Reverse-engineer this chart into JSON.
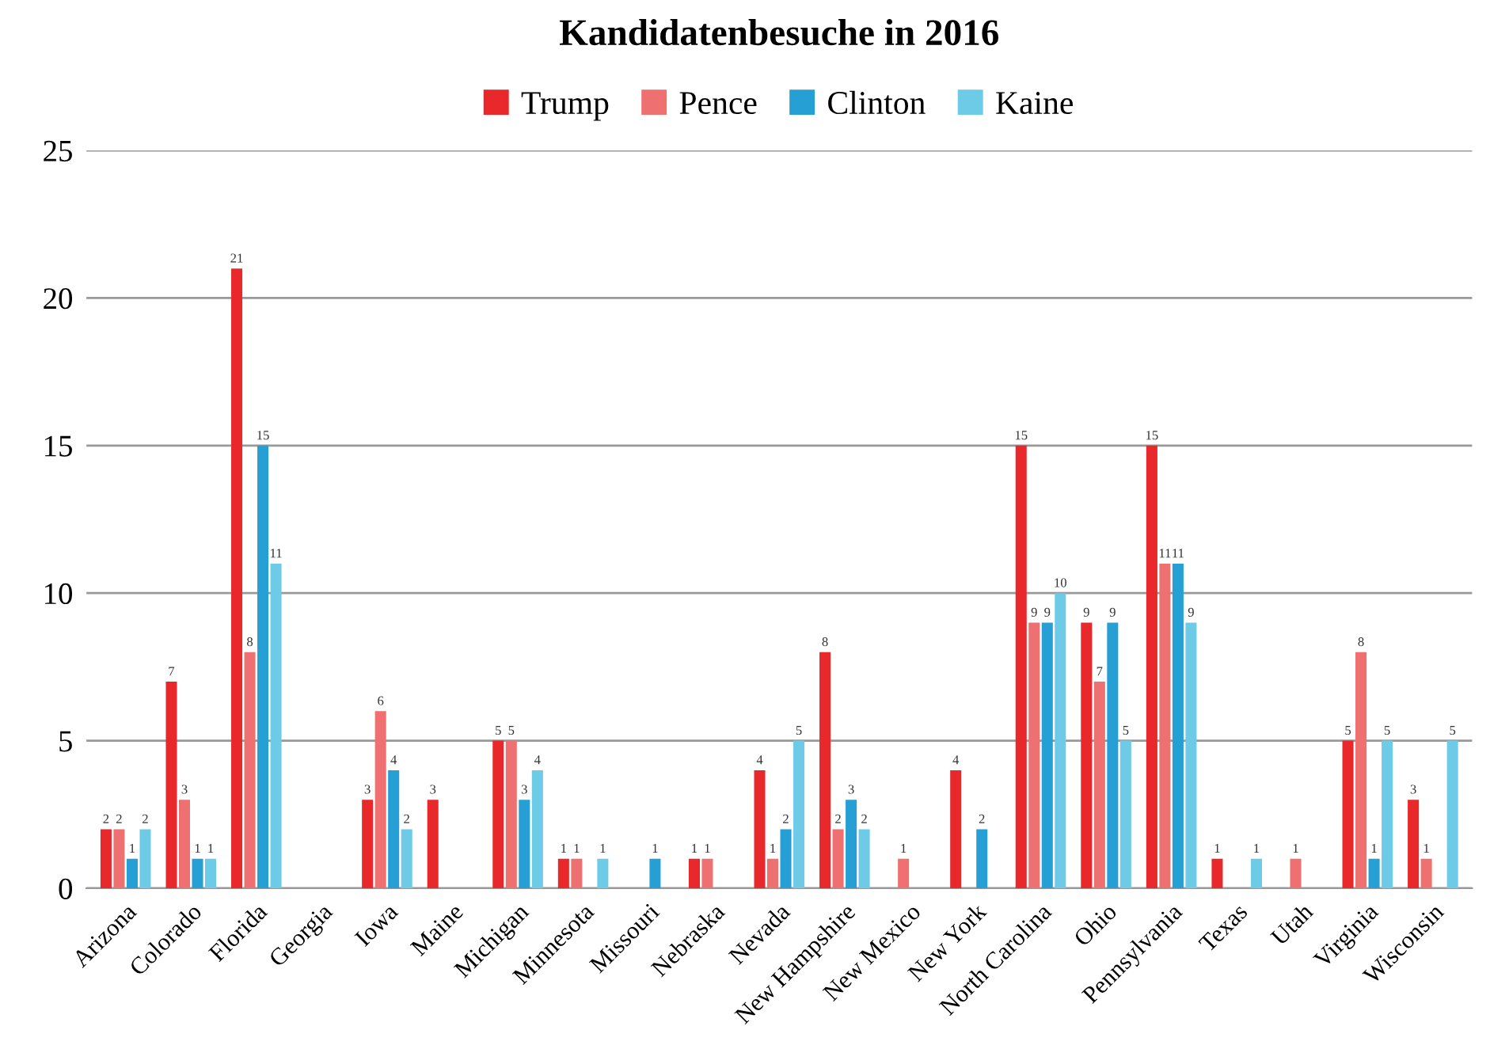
{
  "chart_data": {
    "type": "bar",
    "title": "Kandidatenbesuche in 2016",
    "categories": [
      "Arizona",
      "Colorado",
      "Florida",
      "Georgia",
      "Iowa",
      "Maine",
      "Michigan",
      "Minnesota",
      "Missouri",
      "Nebraska",
      "Nevada",
      "New Hampshire",
      "New Mexico",
      "New York",
      "North Carolina",
      "Ohio",
      "Pennsylvania",
      "Texas",
      "Utah",
      "Virginia",
      "Wisconsin"
    ],
    "series": [
      {
        "name": "Trump",
        "color": "#e8282b",
        "values": [
          2,
          7,
          21,
          null,
          3,
          3,
          5,
          1,
          null,
          1,
          4,
          8,
          null,
          4,
          15,
          9,
          15,
          1,
          null,
          5,
          3
        ]
      },
      {
        "name": "Pence",
        "color": "#ee7070",
        "values": [
          2,
          3,
          8,
          null,
          6,
          null,
          5,
          1,
          null,
          1,
          1,
          2,
          1,
          null,
          9,
          7,
          11,
          null,
          1,
          8,
          1
        ]
      },
      {
        "name": "Clinton",
        "color": "#269fd5",
        "values": [
          1,
          1,
          15,
          null,
          4,
          null,
          3,
          null,
          1,
          null,
          2,
          3,
          null,
          2,
          9,
          9,
          11,
          null,
          null,
          1,
          null
        ]
      },
      {
        "name": "Kaine",
        "color": "#6ecbe8",
        "values": [
          2,
          1,
          11,
          null,
          2,
          null,
          4,
          1,
          null,
          null,
          5,
          2,
          null,
          null,
          10,
          5,
          9,
          1,
          null,
          5,
          5
        ]
      }
    ],
    "ylim": [
      0,
      25
    ],
    "yticks": [
      0,
      5,
      10,
      15,
      20,
      25
    ],
    "grid": "y",
    "legend": "top",
    "data_labels": true
  }
}
